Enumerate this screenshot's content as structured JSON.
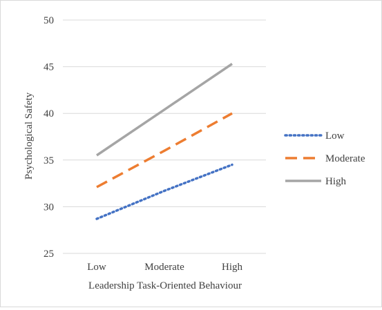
{
  "chart_data": {
    "type": "line",
    "title": "",
    "xlabel": "Leadership Task-Oriented Behaviour",
    "ylabel": "Psychological Safety",
    "categories": [
      "Low",
      "Moderate",
      "High"
    ],
    "ylim": [
      25,
      50
    ],
    "yticks": [
      25,
      30,
      35,
      40,
      45,
      50
    ],
    "grid": true,
    "legend_position": "right",
    "series": [
      {
        "name": "Low",
        "values": [
          28.7,
          31.7,
          34.5
        ],
        "color": "#4472C4",
        "style": "dotted"
      },
      {
        "name": "Moderate",
        "values": [
          32.1,
          36.0,
          40.0
        ],
        "color": "#ED7D31",
        "style": "dashed"
      },
      {
        "name": "High",
        "values": [
          35.5,
          40.4,
          45.3
        ],
        "color": "#A5A5A5",
        "style": "solid"
      }
    ]
  }
}
